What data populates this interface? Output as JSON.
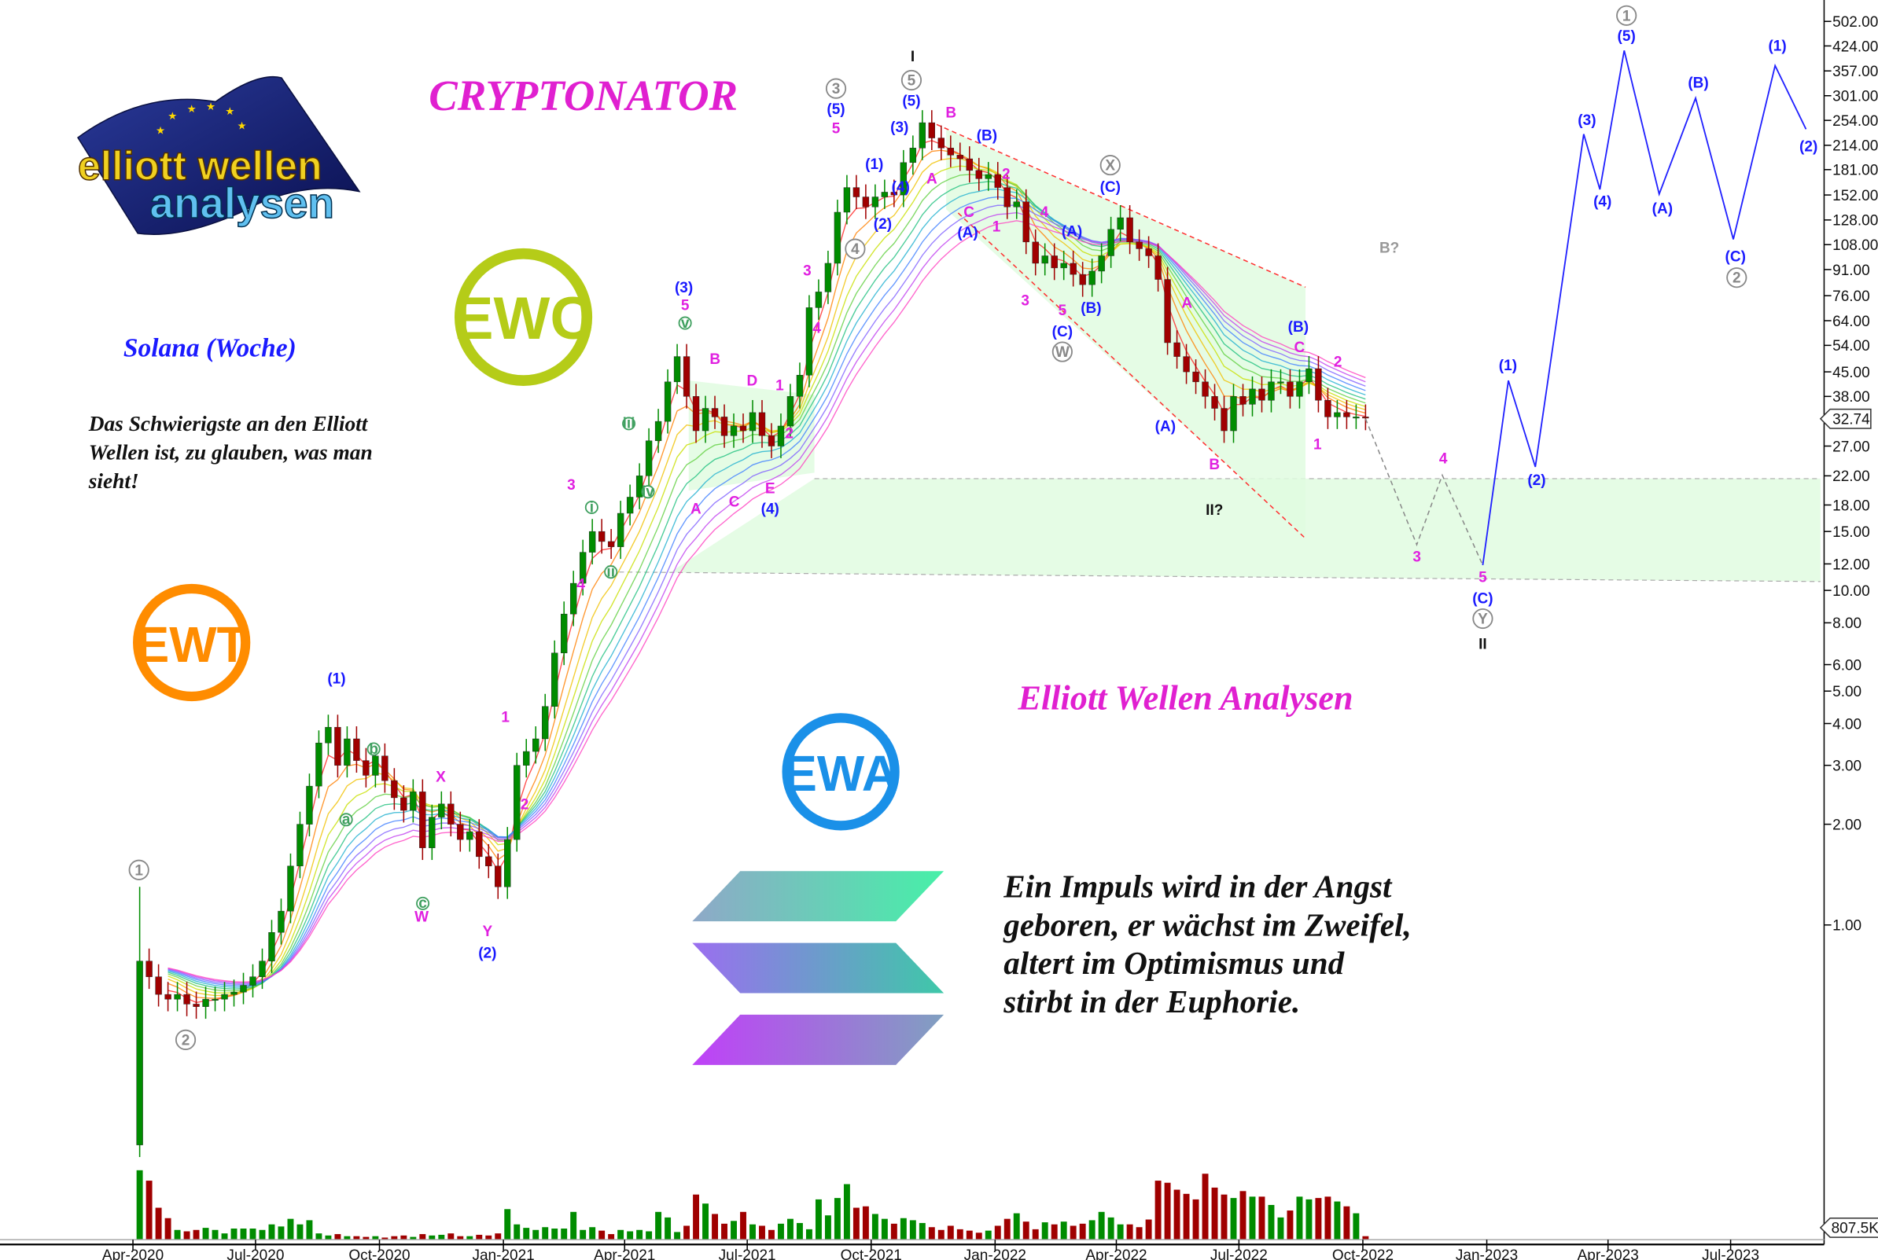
{
  "title": "CRYPTONATOR",
  "subtitle": "Solana (Woche)",
  "brand_text": "Elliott Wellen Analysen",
  "quote_small": [
    "Das Schwierigste an den Elliott",
    "Wellen ist, zu glauben, was man",
    "sieht!"
  ],
  "quote_big": [
    "Ein Impuls wird in der Angst",
    "geboren, er wächst im Zweifel,",
    "altert im Optimismus und",
    "stirbt in der Euphorie."
  ],
  "logo": {
    "line1": "elliott wellen",
    "line2": "analysen"
  },
  "badges": {
    "ewc": "EWC",
    "ewt": "EWT",
    "ewa": "EWA"
  },
  "colors": {
    "up": "#008c00",
    "down": "#a00000",
    "wave_blue": "#1a1aff",
    "wave_magenta": "#e020e0",
    "zone": "#dcfadc",
    "channel": "#ff3030",
    "ewc": "#b5cc18",
    "ewt": "#ff8c00",
    "ewa": "#1a90e8",
    "title": "#e020d0"
  },
  "chart_data": {
    "type": "candlestick",
    "interval": "weekly",
    "y_scale": "log",
    "ylim": [
      0.3,
      560
    ],
    "first_candle_date": "2020-04-06",
    "first_open": 0.22,
    "closes": [
      0.78,
      0.7,
      0.62,
      0.6,
      0.62,
      0.58,
      0.57,
      0.6,
      0.6,
      0.62,
      0.63,
      0.66,
      0.7,
      0.78,
      0.95,
      1.1,
      1.5,
      2.0,
      2.6,
      3.5,
      3.9,
      3.0,
      3.6,
      3.1,
      2.8,
      3.2,
      2.7,
      2.4,
      2.2,
      2.5,
      1.7,
      2.1,
      2.3,
      2.0,
      1.8,
      1.9,
      1.6,
      1.5,
      1.3,
      1.8,
      3.0,
      3.3,
      3.6,
      4.5,
      6.5,
      8.5,
      10.5,
      13,
      15,
      14,
      13.5,
      17,
      19,
      22,
      28,
      32,
      42,
      50,
      38,
      30,
      35,
      33,
      29,
      31,
      30,
      34,
      29,
      27,
      31,
      38,
      44,
      70,
      78,
      95,
      135,
      160,
      150,
      140,
      150,
      155,
      152,
      190,
      210,
      250,
      225,
      210,
      200,
      195,
      180,
      170,
      175,
      160,
      140,
      145,
      110,
      95,
      100,
      92,
      95,
      88,
      82,
      90,
      100,
      120,
      130,
      110,
      105,
      100,
      85,
      55,
      50,
      45,
      42,
      38,
      35,
      30,
      38,
      36,
      40,
      37,
      42,
      42,
      38,
      42,
      46,
      37,
      33,
      34,
      33,
      33,
      32.74
    ],
    "volumes": [
      100,
      85,
      46,
      31,
      14,
      12,
      14,
      17,
      14,
      9,
      16,
      16,
      16,
      14,
      22,
      19,
      30,
      22,
      28,
      9,
      6,
      8,
      5,
      5,
      4,
      5,
      3,
      5,
      6,
      4,
      8,
      6,
      7,
      9,
      5,
      5,
      7,
      6,
      9,
      44,
      22,
      17,
      14,
      18,
      16,
      16,
      40,
      14,
      18,
      13,
      8,
      14,
      12,
      14,
      12,
      40,
      32,
      11,
      20,
      65,
      52,
      37,
      23,
      27,
      40,
      22,
      20,
      14,
      23,
      30,
      24,
      15,
      58,
      35,
      60,
      80,
      46,
      48,
      37,
      30,
      23,
      31,
      28,
      24,
      18,
      14,
      20,
      15,
      13,
      10,
      13,
      20,
      30,
      38,
      26,
      15,
      25,
      22,
      26,
      20,
      23,
      28,
      40,
      32,
      22,
      22,
      18,
      29,
      85,
      82,
      72,
      66,
      58,
      95,
      75,
      65,
      60,
      70,
      62,
      62,
      50,
      32,
      42,
      62,
      58,
      60,
      62,
      55,
      48,
      38,
      5
    ],
    "last_price": "32.74",
    "last_volume": "807.5K",
    "y_ticks": [
      "502.00",
      "424.00",
      "357.00",
      "301.00",
      "254.00",
      "214.00",
      "181.00",
      "152.00",
      "128.00",
      "108.00",
      "91.00",
      "76.00",
      "64.00",
      "54.00",
      "45.00",
      "38.00",
      "27.00",
      "22.00",
      "18.00",
      "15.00",
      "12.00",
      "10.00",
      "8.00",
      "6.00",
      "5.00",
      "4.00",
      "3.00",
      "2.00",
      "1.00"
    ],
    "x_ticks": [
      [
        "Apr-2020",
        "2020-04-01"
      ],
      [
        "Jul-2020",
        "2020-07-01"
      ],
      [
        "Oct-2020",
        "2020-10-01"
      ],
      [
        "Jan-2021",
        "2021-01-01"
      ],
      [
        "Apr-2021",
        "2021-04-01"
      ],
      [
        "Jul-2021",
        "2021-07-01"
      ],
      [
        "Oct-2021",
        "2021-10-01"
      ],
      [
        "Jan-2022",
        "2022-01-01"
      ],
      [
        "Apr-2022",
        "2022-04-01"
      ],
      [
        "Jul-2022",
        "2022-07-01"
      ],
      [
        "Oct-2022",
        "2022-10-01"
      ],
      [
        "Jan-2023",
        "2023-01-01"
      ],
      [
        "Apr-2023",
        "2023-04-01"
      ],
      [
        "Jul-2023",
        "2023-07-01"
      ]
    ],
    "projection_dashed": [
      [
        "2022-10-03",
        32.6
      ],
      [
        "2022-11-10",
        13.7
      ],
      [
        "2022-11-29",
        22.1
      ],
      [
        "2022-12-29",
        11.9
      ]
    ],
    "projection_main": [
      [
        "2022-12-29",
        11.9
      ],
      [
        "2023-01-17",
        42.4
      ],
      [
        "2023-02-06",
        23.4
      ],
      [
        "2023-03-14",
        231
      ],
      [
        "2023-03-26",
        158
      ],
      [
        "2023-04-13",
        411
      ],
      [
        "2023-05-09",
        153
      ],
      [
        "2023-06-05",
        296
      ],
      [
        "2023-07-03",
        112
      ],
      [
        "2023-08-03",
        370
      ],
      [
        "2023-08-26",
        239
      ]
    ],
    "support_zone": [
      11,
      22
    ],
    "wave_labels": [
      {
        "t": "1",
        "s": "g"
      },
      {
        "t": "2",
        "s": "g"
      },
      {
        "t": "(1)",
        "s": "b"
      },
      {
        "t": "b",
        "s": "c"
      },
      {
        "t": "a",
        "s": "c"
      },
      {
        "t": "c",
        "s": "c"
      },
      {
        "t": "X",
        "s": "m"
      },
      {
        "t": "W",
        "s": "m"
      },
      {
        "t": "Y",
        "s": "m"
      },
      {
        "t": "(2)",
        "s": "b"
      },
      {
        "t": "1",
        "s": "m"
      },
      {
        "t": "2",
        "s": "m"
      },
      {
        "t": "3",
        "s": "m"
      },
      {
        "t": "4",
        "s": "m"
      },
      {
        "t": "i",
        "s": "c"
      },
      {
        "t": "ii",
        "s": "c"
      },
      {
        "t": "iii",
        "s": "c"
      },
      {
        "t": "iv",
        "s": "c"
      },
      {
        "t": "v",
        "s": "c"
      },
      {
        "t": "(3)",
        "s": "b"
      },
      {
        "t": "5",
        "s": "m"
      },
      {
        "t": "B",
        "s": "m"
      },
      {
        "t": "A",
        "s": "m"
      },
      {
        "t": "C",
        "s": "m"
      },
      {
        "t": "D",
        "s": "m"
      },
      {
        "t": "1",
        "s": "m"
      },
      {
        "t": "E",
        "s": "m"
      },
      {
        "t": "(4)",
        "s": "b"
      },
      {
        "t": "2",
        "s": "m"
      },
      {
        "t": "3",
        "s": "m"
      },
      {
        "t": "4",
        "s": "m"
      },
      {
        "t": "3",
        "s": "g"
      },
      {
        "t": "(5)",
        "s": "b"
      },
      {
        "t": "5",
        "s": "m"
      },
      {
        "t": "4",
        "s": "g"
      },
      {
        "t": "(1)",
        "s": "b"
      },
      {
        "t": "(2)",
        "s": "b"
      },
      {
        "t": "(3)",
        "s": "b"
      },
      {
        "t": "(4)",
        "s": "b"
      },
      {
        "t": "I",
        "s": "k"
      },
      {
        "t": "5",
        "s": "g"
      },
      {
        "t": "(5)",
        "s": "b"
      },
      {
        "t": "B",
        "s": "m"
      },
      {
        "t": "A",
        "s": "m"
      },
      {
        "t": "(B)",
        "s": "b"
      },
      {
        "t": "2",
        "s": "m"
      },
      {
        "t": "C",
        "s": "m"
      },
      {
        "t": "(A)",
        "s": "b"
      },
      {
        "t": "1",
        "s": "m"
      },
      {
        "t": "4",
        "s": "m"
      },
      {
        "t": "(A)",
        "s": "b"
      },
      {
        "t": "3",
        "s": "m"
      },
      {
        "t": "5",
        "s": "m"
      },
      {
        "t": "(C)",
        "s": "b"
      },
      {
        "t": "W",
        "s": "g"
      },
      {
        "t": "(B)",
        "s": "b"
      },
      {
        "t": "X",
        "s": "g"
      },
      {
        "t": "(C)",
        "s": "b"
      },
      {
        "t": "A",
        "s": "m"
      },
      {
        "t": "(A)",
        "s": "b"
      },
      {
        "t": "B",
        "s": "m"
      },
      {
        "t": "II?",
        "s": "k"
      },
      {
        "t": "(B)",
        "s": "b"
      },
      {
        "t": "C",
        "s": "m"
      },
      {
        "t": "2",
        "s": "m"
      },
      {
        "t": "1",
        "s": "m"
      },
      {
        "t": "B?",
        "s": "q"
      },
      {
        "t": "3",
        "s": "m"
      },
      {
        "t": "4",
        "s": "m"
      },
      {
        "t": "5",
        "s": "m"
      },
      {
        "t": "(C)",
        "s": "b"
      },
      {
        "t": "Y",
        "s": "g"
      },
      {
        "t": "II",
        "s": "k"
      },
      {
        "t": "(1)",
        "s": "b"
      },
      {
        "t": "(2)",
        "s": "b"
      },
      {
        "t": "(3)",
        "s": "b"
      },
      {
        "t": "(4)",
        "s": "b"
      },
      {
        "t": "1",
        "s": "g"
      },
      {
        "t": "(5)",
        "s": "b"
      },
      {
        "t": "(A)",
        "s": "b"
      },
      {
        "t": "(B)",
        "s": "b"
      },
      {
        "t": "(C)",
        "s": "b"
      },
      {
        "t": "2",
        "s": "g"
      },
      {
        "t": "(1)",
        "s": "b"
      },
      {
        "t": "(2)",
        "s": "b"
      }
    ]
  }
}
